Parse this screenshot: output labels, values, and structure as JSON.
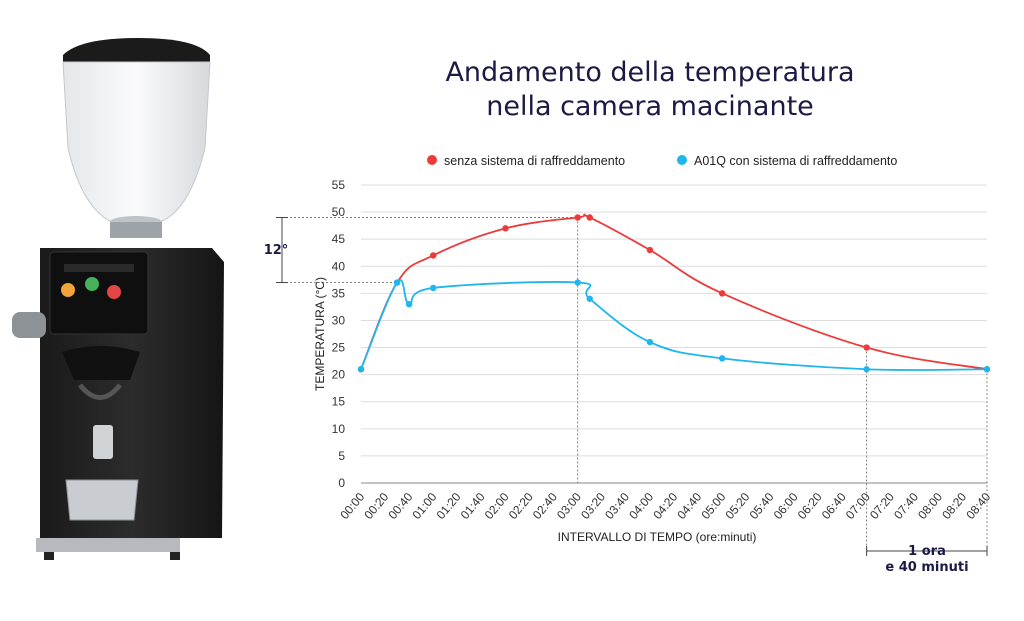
{
  "title_line1": "Andamento della temperatura",
  "title_line2": "nella camera macinante",
  "colors": {
    "red": "#ee3a3a",
    "blue": "#1fb6ee",
    "title": "#1c1a45",
    "grid": "#dddddd"
  },
  "chart_data": {
    "type": "line",
    "xlabel": "INTERVALLO DI TEMPO (ore:minuti)",
    "ylabel": "TEMPERATURA (°C)",
    "ylim": [
      0,
      55
    ],
    "yticks": [
      0,
      5,
      10,
      15,
      20,
      25,
      30,
      35,
      40,
      45,
      50,
      55
    ],
    "xlim": [
      "00:00",
      "08:40"
    ],
    "xticks": [
      "00:00",
      "00:20",
      "00:40",
      "01:00",
      "01:20",
      "01:40",
      "02:00",
      "02:20",
      "02:40",
      "03:00",
      "03:20",
      "03:40",
      "04:00",
      "04:20",
      "04:40",
      "05:00",
      "05:20",
      "05:40",
      "06:00",
      "06:20",
      "06:40",
      "07:00",
      "07:20",
      "07:40",
      "08:00",
      "08:20",
      "08:40"
    ],
    "grid": "horizontal",
    "legend_position": "top",
    "series": [
      {
        "name": "senza sistema di raffreddamento",
        "color": "#ee3a3a",
        "points": [
          [
            "00:00",
            21
          ],
          [
            "00:30",
            37
          ],
          [
            "01:00",
            42
          ],
          [
            "02:00",
            47
          ],
          [
            "03:00",
            49
          ],
          [
            "03:10",
            49
          ],
          [
            "04:00",
            43
          ],
          [
            "05:00",
            35
          ],
          [
            "07:00",
            25
          ],
          [
            "08:40",
            21
          ]
        ]
      },
      {
        "name": "A01Q con sistema di raffreddamento",
        "color": "#1fb6ee",
        "points": [
          [
            "00:00",
            21
          ],
          [
            "00:30",
            37
          ],
          [
            "00:40",
            33
          ],
          [
            "01:00",
            36
          ],
          [
            "03:00",
            37
          ],
          [
            "03:10",
            34
          ],
          [
            "04:00",
            26
          ],
          [
            "05:00",
            23
          ],
          [
            "07:00",
            21
          ],
          [
            "08:40",
            21
          ]
        ]
      }
    ],
    "annotations": {
      "delta_label": "12°",
      "interval_line1": "1 ora",
      "interval_line2": "e 40 minuti"
    }
  }
}
